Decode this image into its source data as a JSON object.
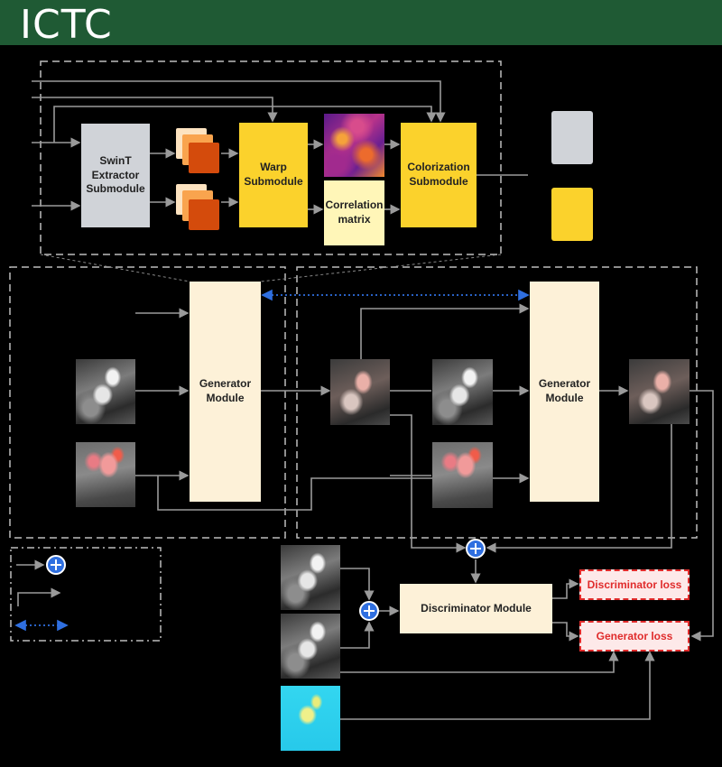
{
  "header": {
    "title": "ICTC"
  },
  "modules": {
    "swint": "SwinT Extractor Submodule",
    "warp": "Warp Submodule",
    "correlation": "Correlation matrix",
    "colorization": "Colorization Submodule",
    "generator_left": "Generator Module",
    "generator_right": "Generator Module",
    "discriminator": "Discriminator Module"
  },
  "losses": {
    "discriminator": "Discriminator loss",
    "generator": "Generator loss"
  },
  "colors": {
    "header": "#1f5a34",
    "submodule_gray": "#d0d3d8",
    "submodule_yellow": "#fbd22c",
    "generator": "#fdf1d8",
    "loss_red": "#e02b2b",
    "dotted_blue": "#2f6fe0"
  }
}
